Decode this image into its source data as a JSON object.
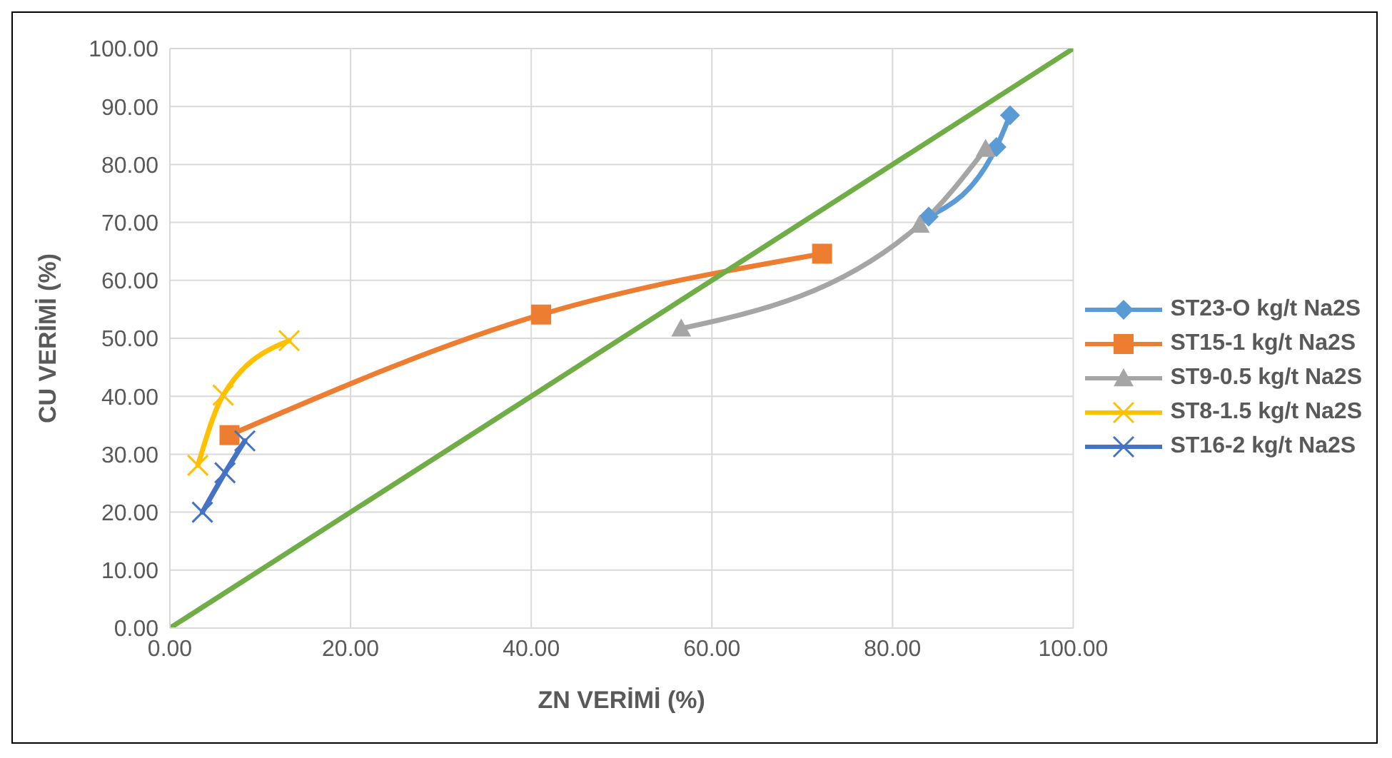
{
  "chart_data": {
    "type": "line",
    "xlabel": "ZN VERİMİ (%)",
    "ylabel": "CU VERİMİ (%)",
    "xlim": [
      0,
      100
    ],
    "xticks": [
      {
        "value": 0,
        "label": "0.00"
      },
      {
        "value": 20,
        "label": "20.00"
      },
      {
        "value": 40,
        "label": "40.00"
      },
      {
        "value": 60,
        "label": "60.00"
      },
      {
        "value": 80,
        "label": "80.00"
      },
      {
        "value": 100,
        "label": "100.00"
      }
    ],
    "ylim": [
      0,
      100
    ],
    "yticks": [
      {
        "value": 0,
        "label": "0.00"
      },
      {
        "value": 10,
        "label": "10.00"
      },
      {
        "value": 20,
        "label": "20.00"
      },
      {
        "value": 30,
        "label": "30.00"
      },
      {
        "value": 40,
        "label": "40.00"
      },
      {
        "value": 50,
        "label": "50.00"
      },
      {
        "value": 60,
        "label": "60.00"
      },
      {
        "value": 70,
        "label": "70.00"
      },
      {
        "value": 80,
        "label": "80.00"
      },
      {
        "value": 90,
        "label": "90.00"
      },
      {
        "value": 100,
        "label": "100.00"
      }
    ],
    "grid": true,
    "legend": "right",
    "line_style": "solid",
    "series": [
      {
        "name": "ST23-O kg/t Na2S",
        "color": "#5b9bd5",
        "marker": "diamond",
        "x": [
          84,
          91.5,
          93
        ],
        "values": [
          71,
          83,
          88.5
        ]
      },
      {
        "name": "ST15-1 kg/t Na2S",
        "color": "#ed7d31",
        "marker": "square",
        "x": [
          6.6,
          41.1,
          72.2
        ],
        "values": [
          33.3,
          54.1,
          64.6
        ]
      },
      {
        "name": "ST9-0.5 kg/t Na2S",
        "color": "#a5a5a5",
        "marker": "triangle",
        "x": [
          56.6,
          83,
          90.3
        ],
        "values": [
          51.7,
          69.6,
          82.7
        ]
      },
      {
        "name": "ST8-1.5 kg/t Na2S",
        "color": "#ffc000",
        "marker": "cross",
        "x": [
          3.1,
          5.9,
          13.2
        ],
        "values": [
          28.1,
          40.2,
          49.6
        ]
      },
      {
        "name": "ST16-2 kg/t Na2S",
        "color": "#4472c4",
        "marker": "cross",
        "x": [
          3.6,
          6.1,
          8.3
        ],
        "values": [
          20,
          26.8,
          32.3
        ]
      },
      {
        "color": "#70ad47",
        "marker": "none",
        "x": [
          0,
          100
        ],
        "values": [
          0,
          100
        ]
      }
    ]
  }
}
